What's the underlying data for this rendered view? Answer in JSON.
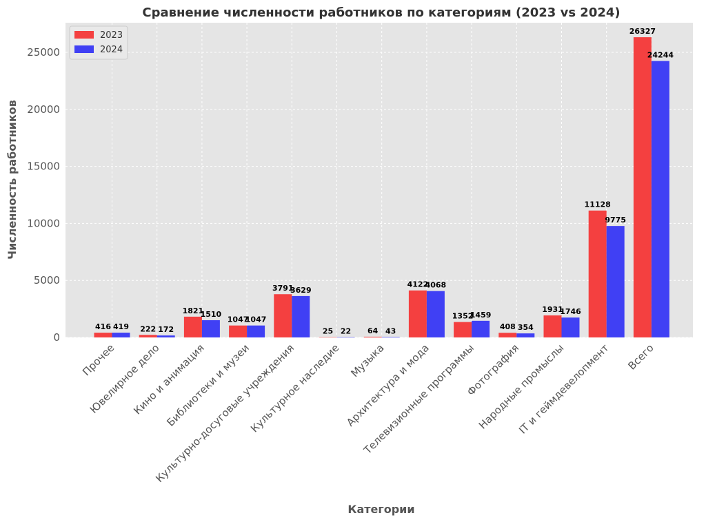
{
  "chart_data": {
    "type": "bar",
    "title": "Сравнение численности работников по категориям (2023 vs 2024)",
    "xlabel": "Категории",
    "ylabel": "Численность работников",
    "categories": [
      "Прочее",
      "Ювелирное дело",
      "Кино и анимация",
      "Библиотеки и музеи",
      "Культурно-досуговые учреждения",
      "Культурное наследие",
      "Музыка",
      "Архитектура и мода",
      "Телевизионные программы",
      "Фотография",
      "Народные промыслы",
      "IT и геймдевелопмент",
      "Всего"
    ],
    "series": [
      {
        "name": "2023",
        "color": "#f44040",
        "values": [
          416,
          222,
          1821,
          1047,
          3791,
          25,
          64,
          4122,
          1352,
          408,
          1931,
          11128,
          26327
        ]
      },
      {
        "name": "2024",
        "color": "#4040f4",
        "values": [
          419,
          172,
          1510,
          1047,
          3629,
          22,
          43,
          4068,
          1459,
          354,
          1746,
          9775,
          24244
        ]
      }
    ],
    "ylim": [
      0,
      27600
    ],
    "yticks": [
      0,
      5000,
      10000,
      15000,
      20000,
      25000
    ],
    "grid": true,
    "legend_position": "top-left"
  }
}
